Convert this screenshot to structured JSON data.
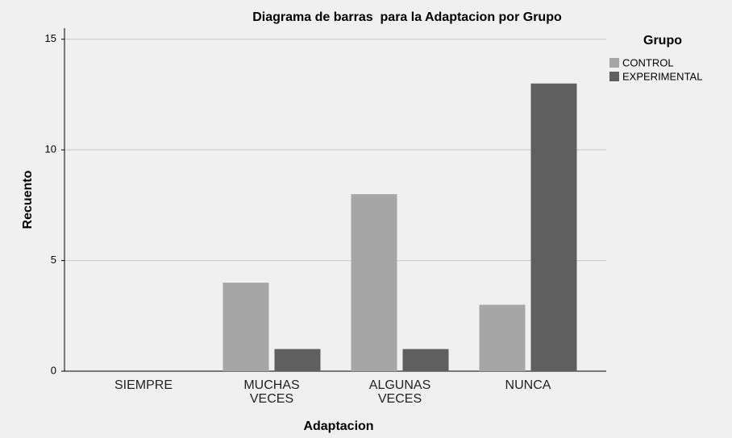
{
  "chart_data": {
    "type": "bar",
    "title": "Diagrama de barras  para la Adaptacion por Grupo",
    "x_label": "Adaptacion",
    "y_label": "Recuento",
    "legend_title": "Grupo",
    "legend": "top-right",
    "categories": [
      "SIEMPRE",
      "MUCHAS VECES",
      "ALGUNAS VECES",
      "NUNCA"
    ],
    "series": [
      {
        "name": "CONTROL",
        "color": "#a6a6a6",
        "values": [
          0,
          4,
          8,
          3
        ]
      },
      {
        "name": "EXPERIMENTAL",
        "color": "#5f5f5f",
        "values": [
          0,
          1,
          1,
          13
        ]
      }
    ],
    "ylim": [
      0,
      15.5
    ],
    "yticks": [
      0,
      5,
      10,
      15
    ],
    "grid": true
  }
}
